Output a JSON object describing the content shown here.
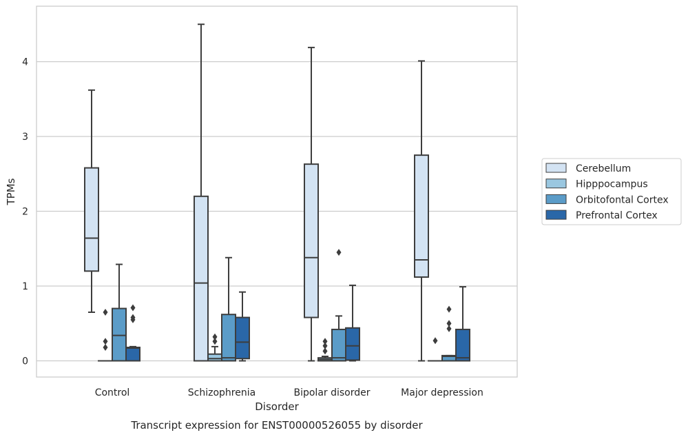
{
  "chart_data": {
    "type": "box",
    "caption": "Transcript expression for ENST00000526055 by disorder",
    "xlabel": "Disorder",
    "ylabel": "TPMs",
    "ylim": [
      -0.22,
      4.75
    ],
    "yticks": [
      "0",
      "1",
      "2",
      "3",
      "4"
    ],
    "grid": "horizontal",
    "legend_position": "right",
    "categories": [
      "Control",
      "Schizophrenia",
      "Bipolar disorder",
      "Major depression"
    ],
    "series": [
      {
        "name": "Cerebellum",
        "color": "#d3e3f3",
        "boxes": [
          {
            "whislo": 0.65,
            "q1": 1.2,
            "med": 1.64,
            "q3": 2.58,
            "whishi": 3.62,
            "fliers": []
          },
          {
            "whislo": 0.0,
            "q1": 0.0,
            "med": 1.04,
            "q3": 2.2,
            "whishi": 4.5,
            "fliers": []
          },
          {
            "whislo": 0.0,
            "q1": 0.58,
            "med": 1.38,
            "q3": 2.63,
            "whishi": 4.19,
            "fliers": []
          },
          {
            "whislo": 0.0,
            "q1": 1.12,
            "med": 1.35,
            "q3": 2.75,
            "whishi": 4.01,
            "fliers": []
          }
        ]
      },
      {
        "name": "Hipppocampus",
        "color": "#9ac7e0",
        "boxes": [
          {
            "whislo": 0.0,
            "q1": 0.0,
            "med": 0.0,
            "q3": 0.0,
            "whishi": 0.0,
            "fliers": [
              0.65,
              0.26,
              0.18
            ]
          },
          {
            "whislo": 0.0,
            "q1": 0.0,
            "med": 0.03,
            "q3": 0.09,
            "whishi": 0.19,
            "fliers": [
              0.32,
              0.26
            ]
          },
          {
            "whislo": 0.0,
            "q1": 0.0,
            "med": 0.02,
            "q3": 0.04,
            "whishi": 0.06,
            "fliers": [
              0.26,
              0.2,
              0.13
            ]
          },
          {
            "whislo": 0.0,
            "q1": 0.0,
            "med": 0.0,
            "q3": 0.0,
            "whishi": 0.0,
            "fliers": [
              0.27
            ]
          }
        ]
      },
      {
        "name": "Orbitofontal Cortex",
        "color": "#5b9cc8",
        "boxes": [
          {
            "whislo": 0.0,
            "q1": 0.0,
            "med": 0.34,
            "q3": 0.7,
            "whishi": 1.29,
            "fliers": []
          },
          {
            "whislo": 0.0,
            "q1": 0.0,
            "med": 0.04,
            "q3": 0.62,
            "whishi": 1.38,
            "fliers": []
          },
          {
            "whislo": 0.0,
            "q1": 0.0,
            "med": 0.04,
            "q3": 0.42,
            "whishi": 0.6,
            "fliers": [
              1.45
            ]
          },
          {
            "whislo": 0.0,
            "q1": 0.0,
            "med": 0.06,
            "q3": 0.07,
            "whishi": 0.07,
            "fliers": [
              0.69,
              0.5,
              0.43
            ]
          }
        ]
      },
      {
        "name": "Prefrontal Cortex",
        "color": "#2a67a8",
        "boxes": [
          {
            "whislo": 0.0,
            "q1": 0.0,
            "med": 0.17,
            "q3": 0.18,
            "whishi": 0.19,
            "fliers": [
              0.71,
              0.58,
              0.55
            ]
          },
          {
            "whislo": 0.0,
            "q1": 0.03,
            "med": 0.25,
            "q3": 0.58,
            "whishi": 0.92,
            "fliers": []
          },
          {
            "whislo": 0.0,
            "q1": 0.01,
            "med": 0.2,
            "q3": 0.44,
            "whishi": 1.01,
            "fliers": []
          },
          {
            "whislo": 0.0,
            "q1": 0.0,
            "med": 0.04,
            "q3": 0.42,
            "whishi": 0.99,
            "fliers": []
          }
        ]
      }
    ]
  }
}
